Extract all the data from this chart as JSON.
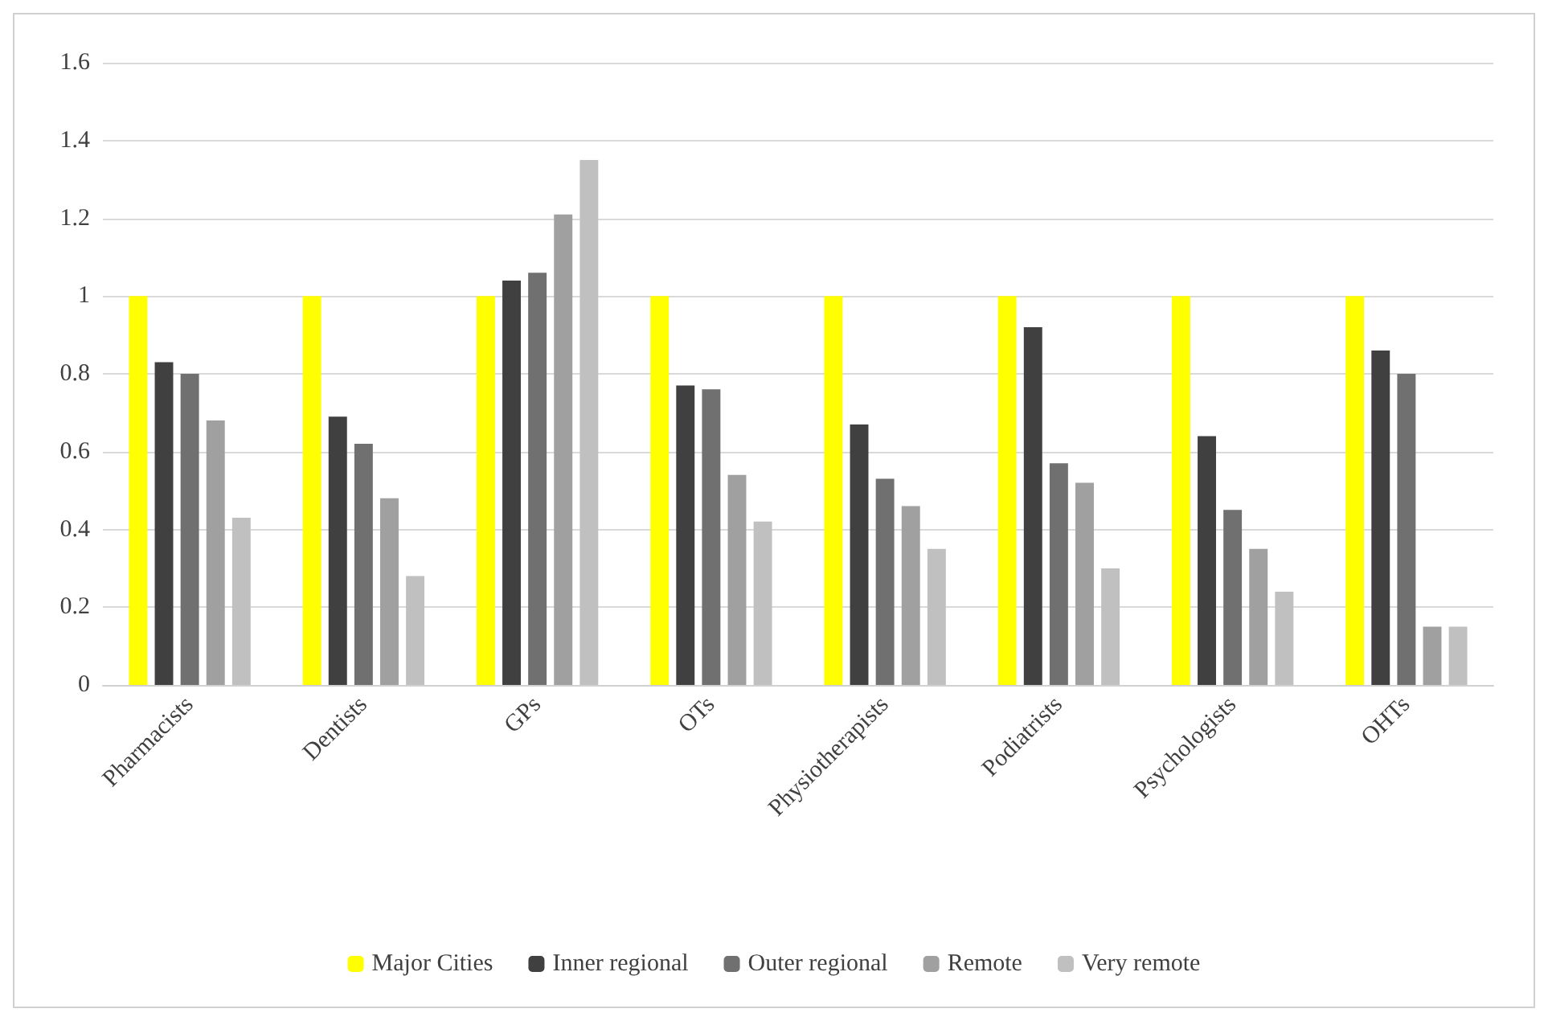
{
  "chart_data": {
    "type": "bar",
    "categories": [
      "Pharmacists",
      "Dentists",
      "GPs",
      "OTs",
      "Physiotherapists",
      "Podiatrists",
      "Psychologists",
      "OHTs"
    ],
    "series": [
      {
        "name": "Major Cities",
        "color": "#ffff00",
        "values": [
          1,
          1,
          1,
          1,
          1,
          1,
          1,
          1
        ]
      },
      {
        "name": "Inner regional",
        "color": "#404040",
        "values": [
          0.83,
          0.69,
          1.04,
          0.77,
          0.67,
          0.92,
          0.64,
          0.86
        ]
      },
      {
        "name": "Outer regional",
        "color": "#707070",
        "values": [
          0.8,
          0.62,
          1.06,
          0.76,
          0.53,
          0.57,
          0.45,
          0.8
        ]
      },
      {
        "name": "Remote",
        "color": "#a0a0a0",
        "values": [
          0.68,
          0.48,
          1.21,
          0.54,
          0.46,
          0.52,
          0.35,
          0.15
        ]
      },
      {
        "name": "Very remote",
        "color": "#c0c0c0",
        "values": [
          0.43,
          0.28,
          1.35,
          0.42,
          0.35,
          0.3,
          0.24,
          0.15
        ]
      }
    ],
    "ylim": [
      0,
      1.6
    ],
    "yticks": [
      0,
      0.2,
      0.4,
      0.6,
      0.8,
      1,
      1.2,
      1.4,
      1.6
    ],
    "grid": "y",
    "legend": "bottom"
  }
}
